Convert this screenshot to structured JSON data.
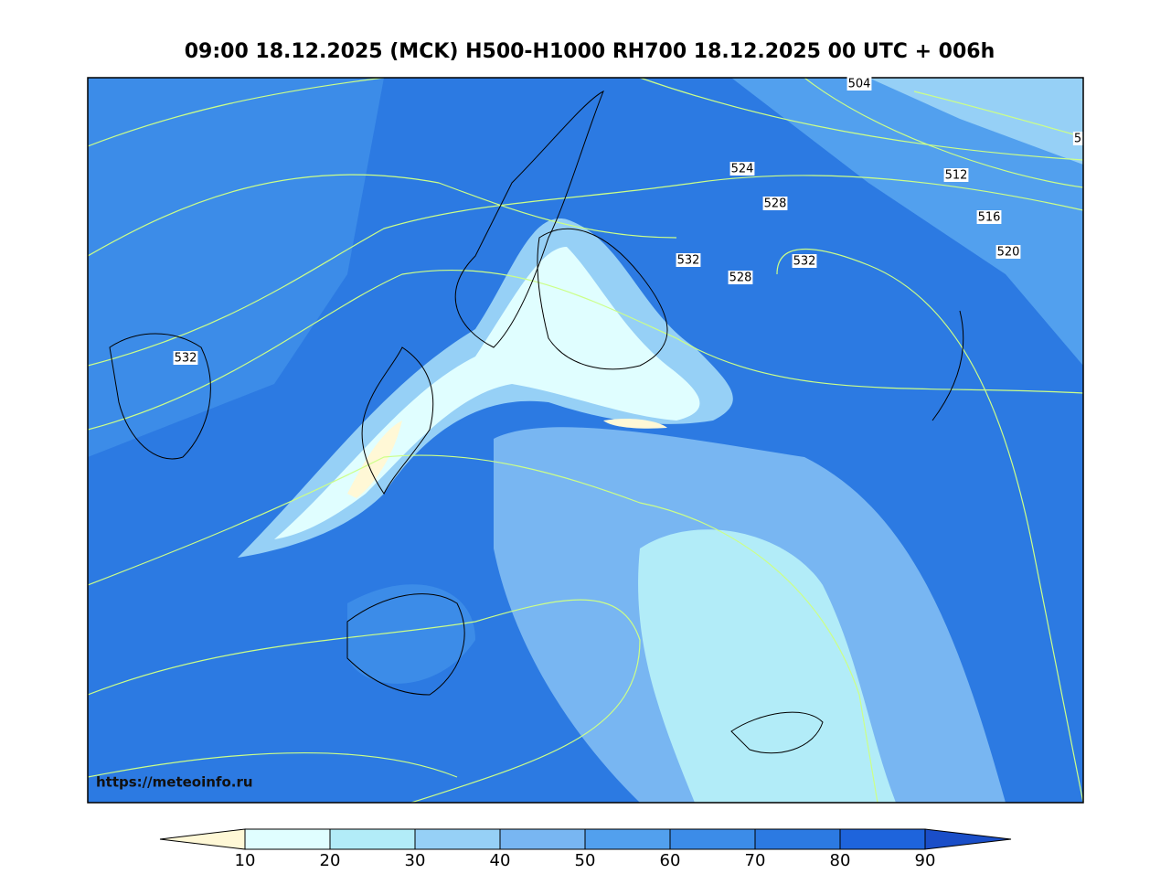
{
  "title": "09:00 18.12.2025 (MCK) H500-H1000 RH700 18.12.2025 00 UTC + 006h",
  "source_url": "https://meteoinfo.ru",
  "contour_labels": [
    "504",
    "524",
    "512",
    "528",
    "516",
    "520",
    "532",
    "528",
    "532",
    "532",
    "5"
  ],
  "colorbar": {
    "ticks": [
      10,
      20,
      30,
      40,
      50,
      60,
      70,
      80,
      90
    ],
    "colors": [
      "#fff8d6",
      "#e0feff",
      "#b2ecf8",
      "#96d0f6",
      "#78b6f2",
      "#52a0ee",
      "#3c8ce8",
      "#2c7ae2",
      "#1e64dc",
      "#1a4ec8"
    ]
  }
}
